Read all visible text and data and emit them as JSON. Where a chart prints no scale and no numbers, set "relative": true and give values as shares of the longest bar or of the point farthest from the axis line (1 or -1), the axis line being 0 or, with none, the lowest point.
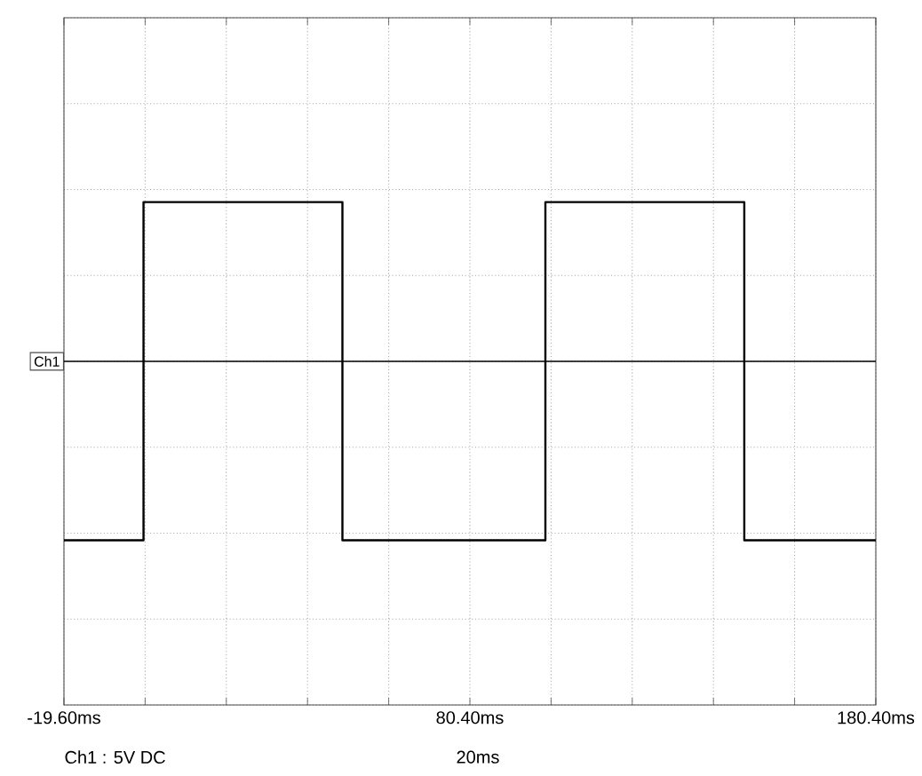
{
  "chart_data": {
    "type": "line",
    "relative": true,
    "xlim": [
      -19.6,
      180.4
    ],
    "xticks": [
      {
        "value": -19.6,
        "label": "-19.60ms"
      },
      {
        "value": 0.4,
        "label": null
      },
      {
        "value": 20.4,
        "label": null
      },
      {
        "value": 40.4,
        "label": null
      },
      {
        "value": 60.4,
        "label": null
      },
      {
        "value": 80.4,
        "label": "80.40ms"
      },
      {
        "value": 100.4,
        "label": null
      },
      {
        "value": 120.4,
        "label": null
      },
      {
        "value": 140.4,
        "label": null
      },
      {
        "value": 160.4,
        "label": null
      },
      {
        "value": 180.4,
        "label": "180.40ms"
      }
    ],
    "grid": true,
    "ref_lines": [
      {
        "axis": "y",
        "value": 0,
        "label": "Ch1"
      }
    ],
    "annotations": [
      "Ch1 : 5V DC",
      "20ms"
    ],
    "series": [
      {
        "color": "#000000",
        "x": [
          -19.6,
          0,
          0,
          49,
          49,
          99,
          99,
          148,
          148,
          180.4
        ],
        "values": [
          -1,
          -1,
          0.89,
          0.89,
          -1,
          -1,
          0.89,
          0.89,
          -1,
          -1
        ]
      }
    ]
  }
}
